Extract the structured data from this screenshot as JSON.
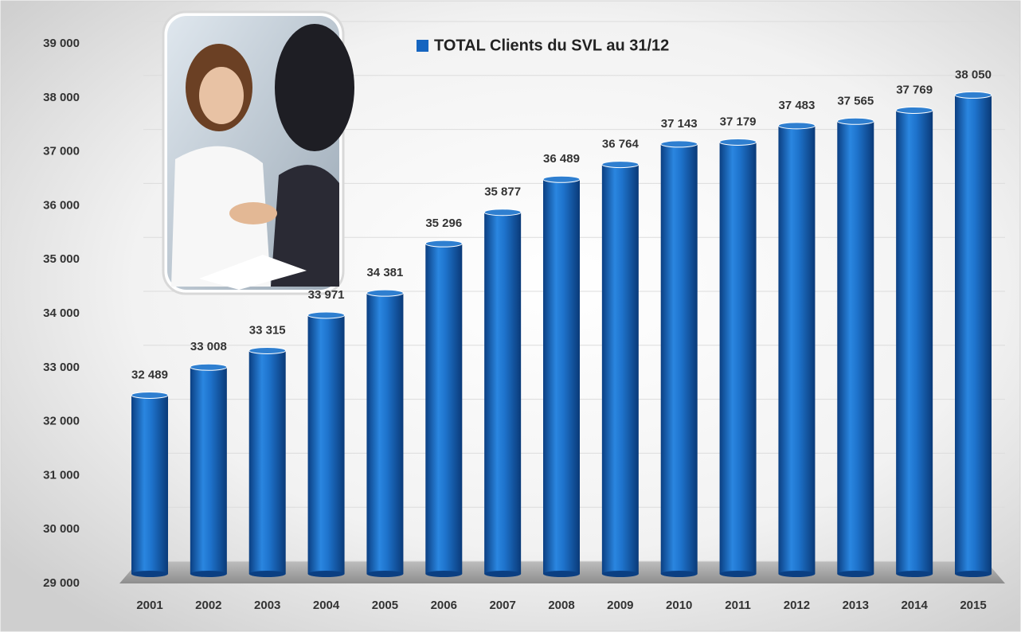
{
  "chart_data": {
    "type": "bar",
    "categories": [
      "2001",
      "2002",
      "2003",
      "2004",
      "2005",
      "2006",
      "2007",
      "2008",
      "2009",
      "2010",
      "2011",
      "2012",
      "2013",
      "2014",
      "2015"
    ],
    "series": [
      {
        "name": "TOTAL Clients du SVL au 31/12",
        "color": "#1565c0",
        "values": [
          32489,
          33008,
          33315,
          33971,
          34381,
          35296,
          35877,
          36489,
          36764,
          37143,
          37179,
          37483,
          37565,
          37769,
          38050
        ],
        "value_labels": [
          "32 489",
          "33 008",
          "33 315",
          "33 971",
          "34 381",
          "35 296",
          "35 877",
          "36 489",
          "36 764",
          "37 143",
          "37 179",
          "37 483",
          "37 565",
          "37 769",
          "38 050"
        ]
      }
    ],
    "ylim": [
      29000,
      39000
    ],
    "yticks": [
      {
        "value": 29000,
        "label": "29 000"
      },
      {
        "value": 30000,
        "label": "30 000"
      },
      {
        "value": 31000,
        "label": "31 000"
      },
      {
        "value": 32000,
        "label": "32 000"
      },
      {
        "value": 33000,
        "label": "33 000"
      },
      {
        "value": 34000,
        "label": "34 000"
      },
      {
        "value": 35000,
        "label": "35 000"
      },
      {
        "value": 36000,
        "label": "36 000"
      },
      {
        "value": 37000,
        "label": "37 000"
      },
      {
        "value": 38000,
        "label": "38 000"
      },
      {
        "value": 39000,
        "label": "39 000"
      }
    ],
    "grid": true
  }
}
